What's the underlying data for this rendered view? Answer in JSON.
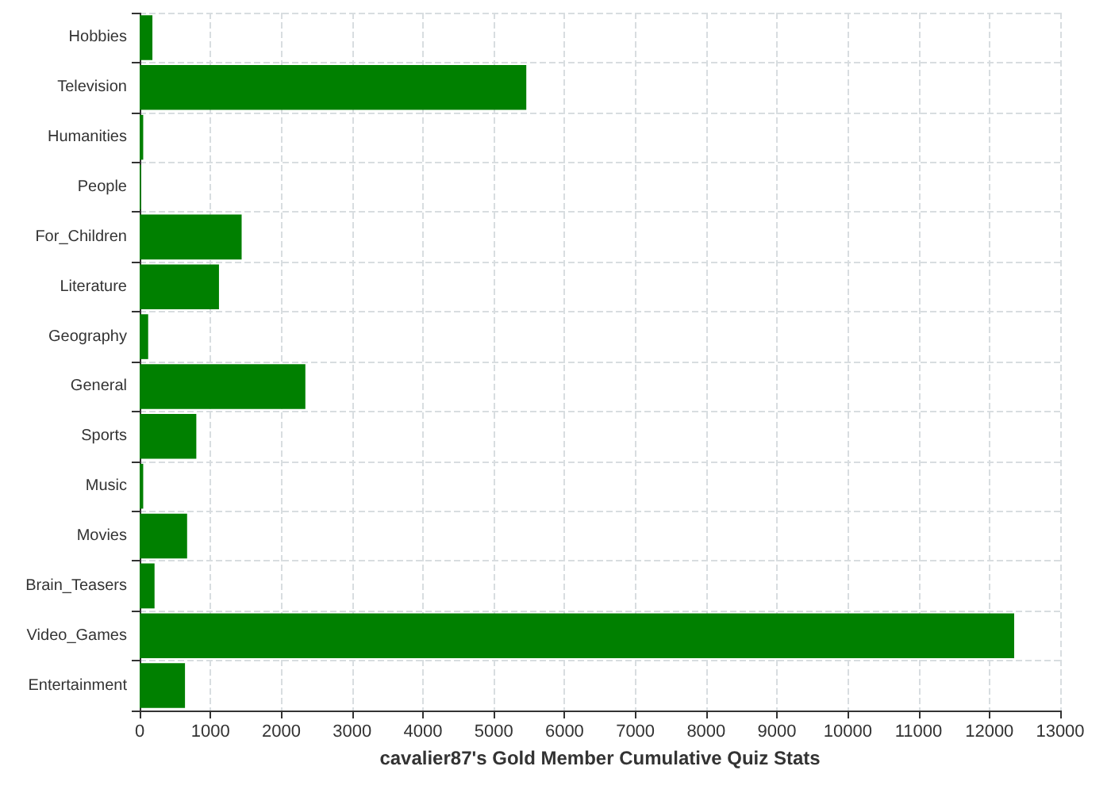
{
  "chart_data": {
    "type": "bar",
    "orientation": "horizontal",
    "xlabel": "cavalier87's Gold Member Cumulative Quiz Stats",
    "categories": [
      "Hobbies",
      "Television",
      "Humanities",
      "People",
      "For_Children",
      "Literature",
      "Geography",
      "General",
      "Sports",
      "Music",
      "Movies",
      "Brain_Teasers",
      "Video_Games",
      "Entertainment"
    ],
    "values": [
      180,
      5460,
      50,
      20,
      1440,
      1120,
      120,
      2340,
      800,
      50,
      670,
      210,
      12350,
      640
    ],
    "color": "#008000",
    "xlim": [
      0,
      13000
    ],
    "xticks": [
      0,
      1000,
      2000,
      3000,
      4000,
      5000,
      6000,
      7000,
      8000,
      9000,
      10000,
      11000,
      12000,
      13000
    ],
    "grid": true
  }
}
